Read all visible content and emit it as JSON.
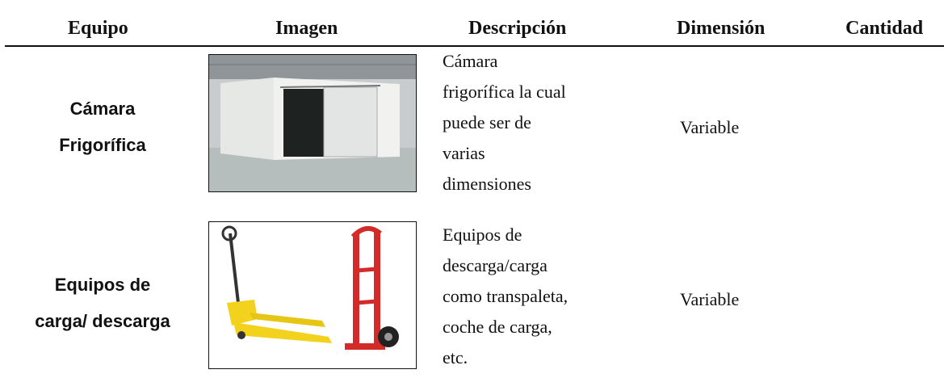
{
  "table": {
    "header": [
      "Equipo",
      "Imagen",
      "Descripción",
      "Dimensión",
      "Cantidad"
    ],
    "rows": [
      {
        "equipo": [
          "Cámara",
          "Frigorífica"
        ],
        "description": [
          "Cámara",
          "frigorífica la cual",
          "puede ser de",
          "varias",
          "dimensiones"
        ],
        "dimension": "Variable"
      },
      {
        "equipo": [
          "Equipos de",
          "carga/ descarga"
        ],
        "description": [
          "Equipos de",
          "descarga/carga",
          "como transpaleta,",
          "coche de carga,",
          "etc."
        ],
        "dimension": "Variable"
      }
    ]
  }
}
